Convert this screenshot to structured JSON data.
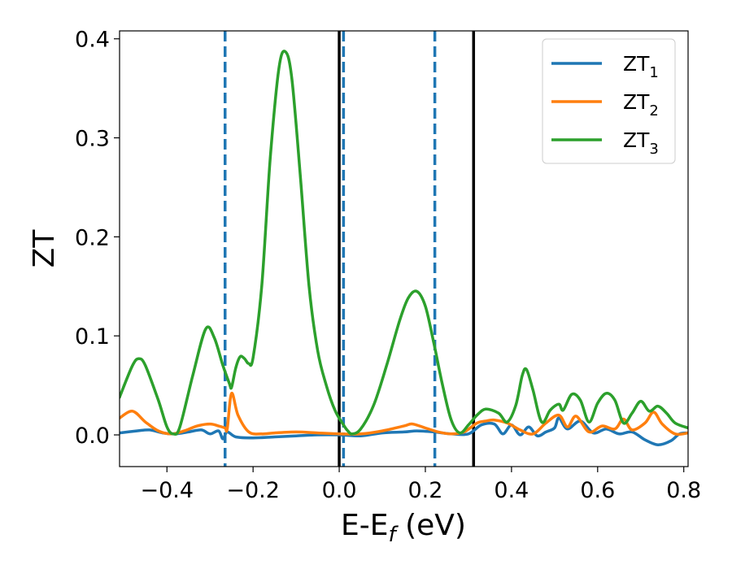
{
  "chart_data": {
    "type": "line",
    "xlabel": {
      "main": "E-E",
      "sub": "f",
      "tail": " (eV)"
    },
    "ylabel": "ZT",
    "xlim": [
      -0.51,
      0.81
    ],
    "ylim": [
      -0.032,
      0.408
    ],
    "xticks": [
      -0.4,
      -0.2,
      0.0,
      0.2,
      0.4,
      0.6,
      0.8
    ],
    "xtick_labels": [
      "−0.4",
      "−0.2",
      "0.0",
      "0.2",
      "0.4",
      "0.6",
      "0.8"
    ],
    "yticks": [
      0.0,
      0.1,
      0.2,
      0.3,
      0.4
    ],
    "ytick_labels": [
      "0.0",
      "0.1",
      "0.2",
      "0.3",
      "0.4"
    ],
    "legend_position": "top-right",
    "vlines_dashed": [
      -0.265,
      0.01,
      0.222
    ],
    "vlines_solid": [
      0.0,
      0.312
    ],
    "vline_dashed_color": "#1f77b4",
    "vline_solid_color": "#000000",
    "series": [
      {
        "base": "ZT",
        "sub": "1",
        "color": "#1f77b4",
        "points": [
          [
            -0.51,
            0.002
          ],
          [
            -0.47,
            0.004
          ],
          [
            -0.44,
            0.005
          ],
          [
            -0.41,
            0.002
          ],
          [
            -0.38,
            0.001
          ],
          [
            -0.35,
            0.003
          ],
          [
            -0.32,
            0.005
          ],
          [
            -0.3,
            0.001
          ],
          [
            -0.28,
            0.004
          ],
          [
            -0.27,
            -0.004
          ],
          [
            -0.26,
            0.003
          ],
          [
            -0.24,
            -0.002
          ],
          [
            -0.2,
            -0.003
          ],
          [
            -0.15,
            -0.002
          ],
          [
            -0.1,
            -0.001
          ],
          [
            -0.05,
            0.0
          ],
          [
            0.0,
            0.0
          ],
          [
            0.05,
            -0.001
          ],
          [
            0.1,
            0.002
          ],
          [
            0.15,
            0.003
          ],
          [
            0.18,
            0.004
          ],
          [
            0.22,
            0.003
          ],
          [
            0.26,
            0.001
          ],
          [
            0.3,
            0.001
          ],
          [
            0.33,
            0.01
          ],
          [
            0.36,
            0.011
          ],
          [
            0.38,
            0.001
          ],
          [
            0.4,
            0.01
          ],
          [
            0.42,
            0.0
          ],
          [
            0.44,
            0.008
          ],
          [
            0.46,
            -0.001
          ],
          [
            0.48,
            0.003
          ],
          [
            0.5,
            0.007
          ],
          [
            0.51,
            0.017
          ],
          [
            0.53,
            0.006
          ],
          [
            0.56,
            0.014
          ],
          [
            0.59,
            0.002
          ],
          [
            0.62,
            0.006
          ],
          [
            0.65,
            0.001
          ],
          [
            0.68,
            0.003
          ],
          [
            0.71,
            -0.005
          ],
          [
            0.74,
            -0.01
          ],
          [
            0.77,
            -0.006
          ],
          [
            0.79,
            0.001
          ],
          [
            0.81,
            0.002
          ]
        ]
      },
      {
        "base": "ZT",
        "sub": "2",
        "color": "#ff7f0e",
        "points": [
          [
            -0.51,
            0.017
          ],
          [
            -0.48,
            0.024
          ],
          [
            -0.45,
            0.013
          ],
          [
            -0.42,
            0.004
          ],
          [
            -0.39,
            0.001
          ],
          [
            -0.36,
            0.004
          ],
          [
            -0.33,
            0.009
          ],
          [
            -0.3,
            0.011
          ],
          [
            -0.28,
            0.009
          ],
          [
            -0.265,
            0.007
          ],
          [
            -0.26,
            0.006
          ],
          [
            -0.25,
            0.042
          ],
          [
            -0.235,
            0.02
          ],
          [
            -0.21,
            0.003
          ],
          [
            -0.18,
            0.001
          ],
          [
            -0.15,
            0.002
          ],
          [
            -0.1,
            0.003
          ],
          [
            -0.05,
            0.002
          ],
          [
            0.0,
            0.001
          ],
          [
            0.05,
            0.001
          ],
          [
            0.1,
            0.004
          ],
          [
            0.15,
            0.009
          ],
          [
            0.17,
            0.011
          ],
          [
            0.2,
            0.007
          ],
          [
            0.23,
            0.003
          ],
          [
            0.26,
            0.001
          ],
          [
            0.29,
            0.003
          ],
          [
            0.32,
            0.012
          ],
          [
            0.34,
            0.014
          ],
          [
            0.36,
            0.015
          ],
          [
            0.39,
            0.012
          ],
          [
            0.42,
            0.005
          ],
          [
            0.45,
            0.001
          ],
          [
            0.48,
            0.012
          ],
          [
            0.51,
            0.02
          ],
          [
            0.53,
            0.008
          ],
          [
            0.55,
            0.019
          ],
          [
            0.58,
            0.003
          ],
          [
            0.61,
            0.009
          ],
          [
            0.64,
            0.006
          ],
          [
            0.66,
            0.016
          ],
          [
            0.68,
            0.005
          ],
          [
            0.71,
            0.012
          ],
          [
            0.73,
            0.023
          ],
          [
            0.75,
            0.011
          ],
          [
            0.78,
            0.001
          ],
          [
            0.81,
            0.002
          ]
        ]
      },
      {
        "base": "ZT",
        "sub": "3",
        "color": "#2ca02c",
        "points": [
          [
            -0.51,
            0.038
          ],
          [
            -0.48,
            0.07
          ],
          [
            -0.465,
            0.077
          ],
          [
            -0.45,
            0.07
          ],
          [
            -0.42,
            0.035
          ],
          [
            -0.4,
            0.008
          ],
          [
            -0.385,
            0.001
          ],
          [
            -0.37,
            0.008
          ],
          [
            -0.34,
            0.06
          ],
          [
            -0.31,
            0.107
          ],
          [
            -0.29,
            0.098
          ],
          [
            -0.27,
            0.07
          ],
          [
            -0.255,
            0.052
          ],
          [
            -0.25,
            0.048
          ],
          [
            -0.24,
            0.068
          ],
          [
            -0.23,
            0.079
          ],
          [
            -0.22,
            0.077
          ],
          [
            -0.21,
            0.072
          ],
          [
            -0.2,
            0.078
          ],
          [
            -0.18,
            0.15
          ],
          [
            -0.16,
            0.28
          ],
          [
            -0.14,
            0.37
          ],
          [
            -0.125,
            0.387
          ],
          [
            -0.11,
            0.36
          ],
          [
            -0.09,
            0.26
          ],
          [
            -0.07,
            0.15
          ],
          [
            -0.05,
            0.085
          ],
          [
            -0.03,
            0.05
          ],
          [
            -0.01,
            0.025
          ],
          [
            0.01,
            0.01
          ],
          [
            0.02,
            0.004
          ],
          [
            0.03,
            0.001
          ],
          [
            0.05,
            0.006
          ],
          [
            0.08,
            0.03
          ],
          [
            0.11,
            0.07
          ],
          [
            0.14,
            0.115
          ],
          [
            0.16,
            0.138
          ],
          [
            0.18,
            0.145
          ],
          [
            0.2,
            0.13
          ],
          [
            0.22,
            0.092
          ],
          [
            0.24,
            0.05
          ],
          [
            0.26,
            0.015
          ],
          [
            0.28,
            0.002
          ],
          [
            0.3,
            0.01
          ],
          [
            0.32,
            0.02
          ],
          [
            0.34,
            0.026
          ],
          [
            0.37,
            0.022
          ],
          [
            0.39,
            0.013
          ],
          [
            0.41,
            0.03
          ],
          [
            0.425,
            0.06
          ],
          [
            0.435,
            0.066
          ],
          [
            0.45,
            0.045
          ],
          [
            0.47,
            0.013
          ],
          [
            0.49,
            0.025
          ],
          [
            0.51,
            0.031
          ],
          [
            0.52,
            0.025
          ],
          [
            0.54,
            0.041
          ],
          [
            0.56,
            0.035
          ],
          [
            0.58,
            0.013
          ],
          [
            0.6,
            0.032
          ],
          [
            0.62,
            0.042
          ],
          [
            0.64,
            0.035
          ],
          [
            0.66,
            0.012
          ],
          [
            0.68,
            0.022
          ],
          [
            0.7,
            0.034
          ],
          [
            0.72,
            0.024
          ],
          [
            0.74,
            0.029
          ],
          [
            0.76,
            0.022
          ],
          [
            0.78,
            0.012
          ],
          [
            0.81,
            0.007
          ]
        ]
      }
    ]
  }
}
